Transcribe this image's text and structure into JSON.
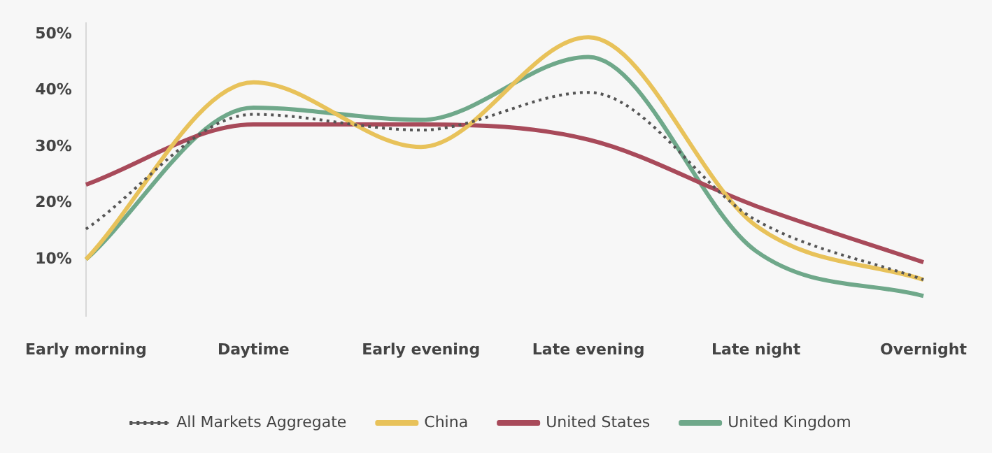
{
  "chart_data": {
    "type": "line",
    "categories": [
      "Early morning",
      "Daytime",
      "Early evening",
      "Late evening",
      "Late night",
      "Overnight"
    ],
    "series": [
      {
        "name": "All Markets Aggregate",
        "color": "#555555",
        "line_style": "dotted",
        "values": [
          15.4,
          35.8,
          33,
          39.7,
          17,
          6.4
        ]
      },
      {
        "name": "China",
        "color": "#e8c25a",
        "values": [
          10,
          41.5,
          30,
          49.5,
          16,
          6.4
        ]
      },
      {
        "name": "United States",
        "color": "#a84a5a",
        "values": [
          23.3,
          34,
          34,
          31.3,
          19.5,
          9.5
        ]
      },
      {
        "name": "United Kingdom",
        "color": "#6fa88a",
        "values": [
          10,
          37,
          34.8,
          46,
          11.5,
          3.5
        ]
      }
    ],
    "ylim": [
      0,
      52
    ],
    "yticks": [
      {
        "value": 10,
        "label": "10%"
      },
      {
        "value": 20,
        "label": "20%"
      },
      {
        "value": 30,
        "label": "30%"
      },
      {
        "value": 40,
        "label": "40%"
      },
      {
        "value": 50,
        "label": "50%"
      }
    ],
    "grid": false,
    "legend": "bottom",
    "marker": "none",
    "line_style": "solid"
  }
}
